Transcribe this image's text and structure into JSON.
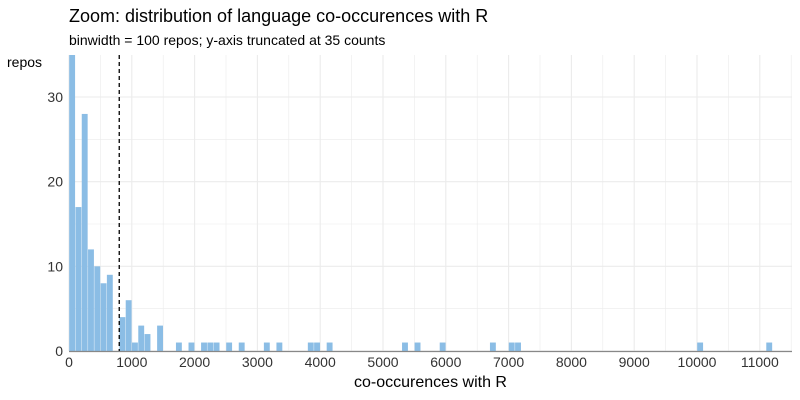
{
  "chart_data": {
    "type": "bar",
    "title": "Zoom: distribution of language co-occurences with R",
    "subtitle": "binwidth = 100 repos; y-axis truncated at 35 counts",
    "xlabel": "co-occurences with R",
    "ylabel": "repos",
    "binwidth": 100,
    "xlim": [
      0,
      11500
    ],
    "ylim": [
      0,
      35
    ],
    "xticks": [
      0,
      1000,
      2000,
      3000,
      4000,
      5000,
      6000,
      7000,
      8000,
      9000,
      10000,
      11000
    ],
    "yticks": [
      0,
      10,
      20,
      30
    ],
    "bins": [
      {
        "x": 0,
        "count": 35
      },
      {
        "x": 100,
        "count": 17
      },
      {
        "x": 200,
        "count": 28
      },
      {
        "x": 300,
        "count": 12
      },
      {
        "x": 400,
        "count": 10
      },
      {
        "x": 500,
        "count": 8
      },
      {
        "x": 600,
        "count": 9
      },
      {
        "x": 800,
        "count": 4
      },
      {
        "x": 900,
        "count": 6
      },
      {
        "x": 1000,
        "count": 1
      },
      {
        "x": 1100,
        "count": 3
      },
      {
        "x": 1200,
        "count": 2
      },
      {
        "x": 1400,
        "count": 3
      },
      {
        "x": 1700,
        "count": 1
      },
      {
        "x": 1900,
        "count": 1
      },
      {
        "x": 2100,
        "count": 1
      },
      {
        "x": 2200,
        "count": 1
      },
      {
        "x": 2300,
        "count": 1
      },
      {
        "x": 2500,
        "count": 1
      },
      {
        "x": 2700,
        "count": 1
      },
      {
        "x": 3100,
        "count": 1
      },
      {
        "x": 3300,
        "count": 1
      },
      {
        "x": 3800,
        "count": 1
      },
      {
        "x": 3900,
        "count": 1
      },
      {
        "x": 4100,
        "count": 1
      },
      {
        "x": 5300,
        "count": 1
      },
      {
        "x": 5500,
        "count": 1
      },
      {
        "x": 5900,
        "count": 1
      },
      {
        "x": 6700,
        "count": 1
      },
      {
        "x": 7000,
        "count": 1
      },
      {
        "x": 7100,
        "count": 1
      },
      {
        "x": 10000,
        "count": 1
      },
      {
        "x": 11100,
        "count": 1
      }
    ],
    "reference_line": {
      "x": 800,
      "style": "dashed"
    },
    "bar_color": "#8bbde5",
    "reference_line_color": "#000000",
    "grid": true,
    "grid_color": "#ebebeb"
  }
}
